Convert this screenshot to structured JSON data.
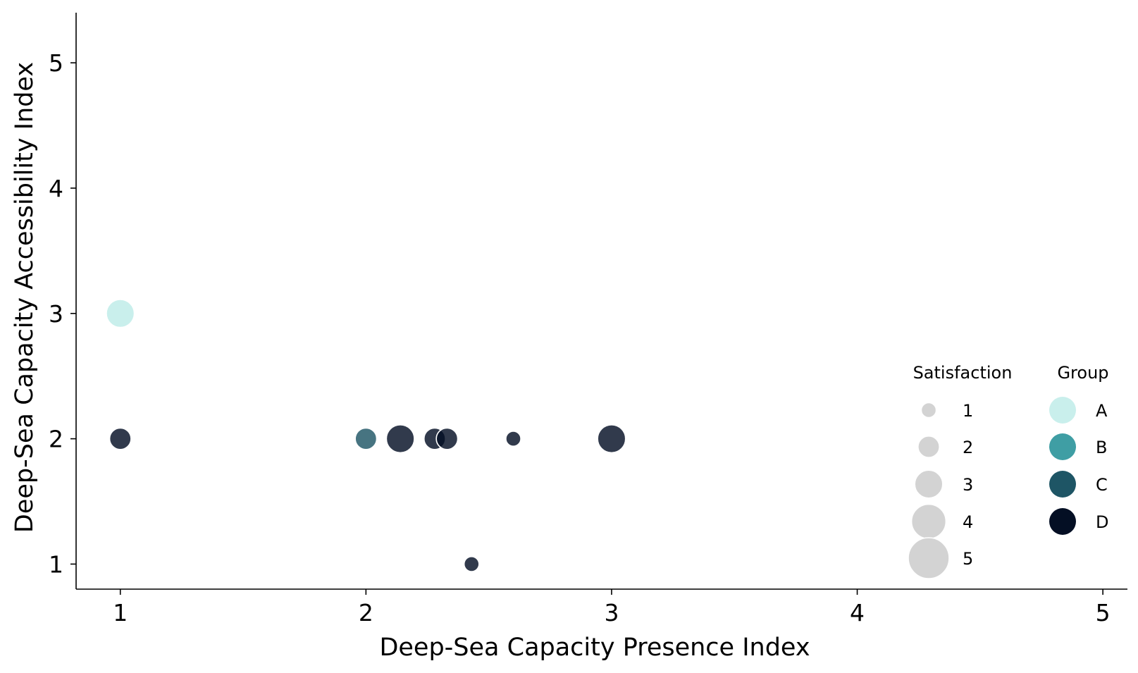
{
  "chart_data": {
    "type": "scatter",
    "title": "",
    "xlabel": "Deep-Sea Capacity Presence Index",
    "ylabel": "Deep-Sea Capacity Accessibility Index",
    "xlim": [
      0.82,
      5.1
    ],
    "ylim": [
      0.8,
      5.4
    ],
    "xticks": [
      "1",
      "2",
      "3",
      "4",
      "5"
    ],
    "yticks": [
      "1",
      "2",
      "3",
      "4",
      "5"
    ],
    "grid": false,
    "legend_placement": "bottom-right",
    "size_legend": {
      "title": "Satisfaction",
      "labels": [
        "1",
        "2",
        "3",
        "4",
        "5"
      ],
      "values": [
        1,
        2,
        3,
        4,
        5
      ]
    },
    "color_legend": {
      "title": "Group",
      "labels": [
        "A",
        "B",
        "C",
        "D"
      ]
    },
    "group_colors": {
      "A": "#c9efec",
      "B": "#3f9ea4",
      "C": "#1e5565",
      "D": "#040f24"
    },
    "points": [
      {
        "x": 1.0,
        "y": 3.0,
        "group": "A",
        "satisfaction": 3
      },
      {
        "x": 1.0,
        "y": 2.0,
        "group": "D",
        "satisfaction": 2
      },
      {
        "x": 2.0,
        "y": 2.0,
        "group": "C",
        "satisfaction": 2
      },
      {
        "x": 2.14,
        "y": 2.0,
        "group": "D",
        "satisfaction": 3
      },
      {
        "x": 2.28,
        "y": 2.0,
        "group": "D",
        "satisfaction": 2
      },
      {
        "x": 2.33,
        "y": 2.0,
        "group": "D",
        "satisfaction": 2
      },
      {
        "x": 2.6,
        "y": 2.0,
        "group": "D",
        "satisfaction": 1
      },
      {
        "x": 3.0,
        "y": 2.0,
        "group": "D",
        "satisfaction": 3
      },
      {
        "x": 2.43,
        "y": 1.0,
        "group": "D",
        "satisfaction": 1
      }
    ]
  }
}
